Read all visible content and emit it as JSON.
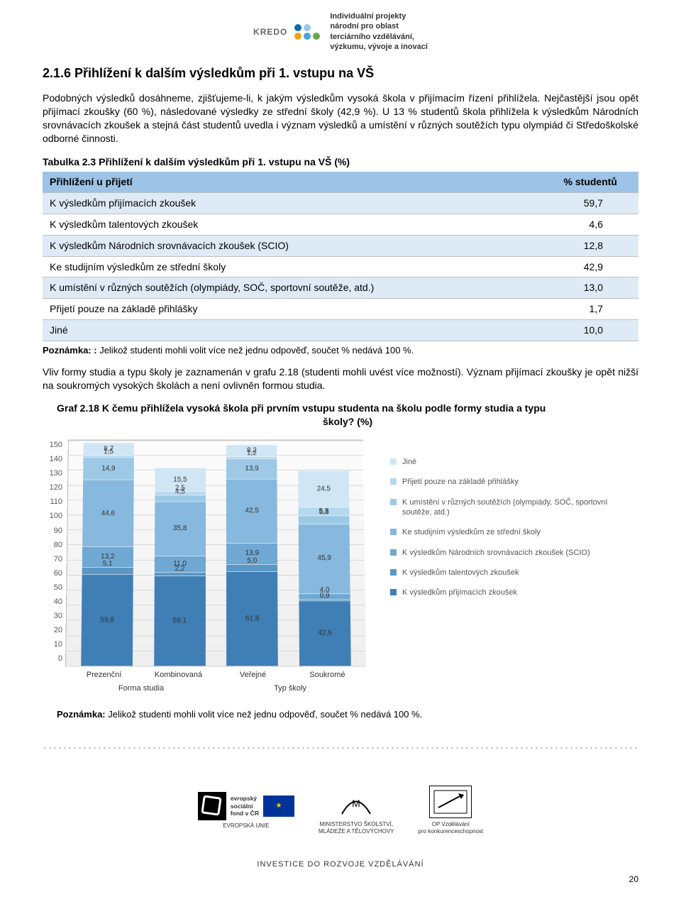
{
  "header_logo": {
    "brand": "KREDO",
    "tagline": "Individuální projekty\nnárodní pro oblast\nterciárního vzdělávání,\nvýzkumu, vývoje a inovací",
    "dots": [
      "#0b6fb5",
      "#9cc4e4",
      "#e7a614",
      "#4aa3df",
      "#6aa84f"
    ]
  },
  "section_title": "2.1.6   Přihlížení k dalším výsledkům při 1. vstupu na VŠ",
  "para1": "Podobných výsledků dosáhneme, zjišťujeme-li, k jakým výsledkům vysoká škola v přijímacím řízení přihlížela. Nejčastější jsou opět přijímací zkoušky (60 %), následované výsledky ze střední školy (42,9 %). U 13 % studentů škola přihlížela k výsledkům Národních srovnávacích zkoušek a stejná část studentů uvedla i význam výsledků a umístění v různých soutěžích typu olympiád či Středoškolské odborné činnosti.",
  "table_caption": "Tabulka 2.3 Přihlížení k dalším výsledkům při 1. vstupu na VŠ (%)",
  "table": {
    "col1": "Přihlížení u přijetí",
    "col2": "% studentů",
    "rows": [
      {
        "label": "K výsledkům přijímacích zkoušek",
        "value": "59,7"
      },
      {
        "label": "K výsledkům talentových zkoušek",
        "value": "4,6"
      },
      {
        "label": "K výsledkům Národních srovnávacích zkoušek (SCIO)",
        "value": "12,8"
      },
      {
        "label": "Ke studijním výsledkům ze střední školy",
        "value": "42,9"
      },
      {
        "label": "K umístění v různých soutěžích (olympiády, SOČ, sportovní soutěže, atd.)",
        "value": "13,0"
      },
      {
        "label": "Přijetí pouze na základě přihlášky",
        "value": "1,7"
      },
      {
        "label": "Jiné",
        "value": "10,0"
      }
    ],
    "header_bg": "#9dc3e6",
    "alt_bg": "#deebf6",
    "border": "#bfbfbf"
  },
  "note1_bold": "Poznámka: :",
  "note1_text": " Jelikož studenti mohli volit více než jednu odpověď, součet % nedává 100 %.",
  "para2": "Vliv formy studia a typu školy je zaznamenán v grafu 2.18 (studenti mohli uvést více možností). Význam přijímací zkoušky je opět nižší na soukromých vysokých školách a není ovlivněn formou studia.",
  "chart_title_l1": "Graf 2.18 K čemu přihlížela vysoká škola při prvním vstupu studenta na školu podle formy studia a typu",
  "chart_title_l2": "školy? (%)",
  "chart": {
    "ymax": 150,
    "yticks": [
      150,
      140,
      130,
      120,
      110,
      100,
      90,
      80,
      70,
      60,
      50,
      40,
      30,
      20,
      10,
      0
    ],
    "categories": [
      "Prezenční",
      "Kombinovaná",
      "Veřejné",
      "Soukromé"
    ],
    "group_labels": [
      "Forma studia",
      "Typ školy"
    ],
    "series": [
      {
        "name": "K výsledkům přijímacích zkoušek",
        "color": "#3f7fb5"
      },
      {
        "name": "K výsledkům talentových zkoušek",
        "color": "#5a97c5"
      },
      {
        "name": "K výsledkům Národních srovnávacích zkoušek (SCIO)",
        "color": "#6fa8d2"
      },
      {
        "name": "Ke studijním výsledkům ze střední školy",
        "color": "#86b9dd"
      },
      {
        "name": "K umístění v různých soutěžích (olympiády, SOČ, sportovní soutěže, atd.)",
        "color": "#9dc9e6"
      },
      {
        "name": "Přijetí pouze na základě přihlášky",
        "color": "#b5d8ee"
      },
      {
        "name": "Jiné",
        "color": "#d0e6f5"
      }
    ],
    "stacks": [
      {
        "values": [
          59.8,
          5.1,
          13.2,
          44.6,
          14.9,
          1.5,
          8.7
        ],
        "labels": [
          "59,8",
          "5,1",
          "13,2",
          "44,6",
          "14,9",
          "1,5",
          "8,7"
        ]
      },
      {
        "values": [
          59.1,
          2.2,
          11.0,
          35.8,
          4.5,
          2.5,
          15.5
        ],
        "labels": [
          "59,1",
          "2,2",
          "11,0",
          "35,8",
          "4,5",
          "2,5",
          "15,5"
        ]
      },
      {
        "values": [
          61.8,
          5.0,
          13.9,
          42.5,
          13.9,
          1.2,
          8.2
        ],
        "labels": [
          "61,8",
          "5,0",
          "13,9",
          "42,5",
          "13,9",
          "1,2",
          "8,2"
        ]
      },
      {
        "values": [
          42.6,
          0.9,
          4.0,
          45.9,
          5.3,
          5.8,
          24.5
        ],
        "labels": [
          "42,6",
          "0,9",
          "4,0",
          "45,9",
          "5,3",
          "5,8",
          "24,5"
        ]
      }
    ],
    "plot_bg": "#f3f3f3",
    "grid_color": "#d8d8d8",
    "label_fontsize": 10
  },
  "note2_bold": "Poznámka:",
  "note2_text": " Jelikož studenti mohli volit více než jednu odpověď, součet % nedává 100 %.",
  "footer": {
    "esf_lines": "evropský\nsociální\nfond v ČR",
    "eu_label": "EVROPSKÁ UNIE",
    "min_label": "MINISTERSTVO ŠKOLSTVÍ,\nMLÁDEŽE A TĚLOVÝCHOVY",
    "op_label": "OP Vzdělávání\npro konkurenceschopnost",
    "invest": "INVESTICE DO ROZVOJE VZDĚLÁVÁNÍ",
    "page": "20"
  }
}
